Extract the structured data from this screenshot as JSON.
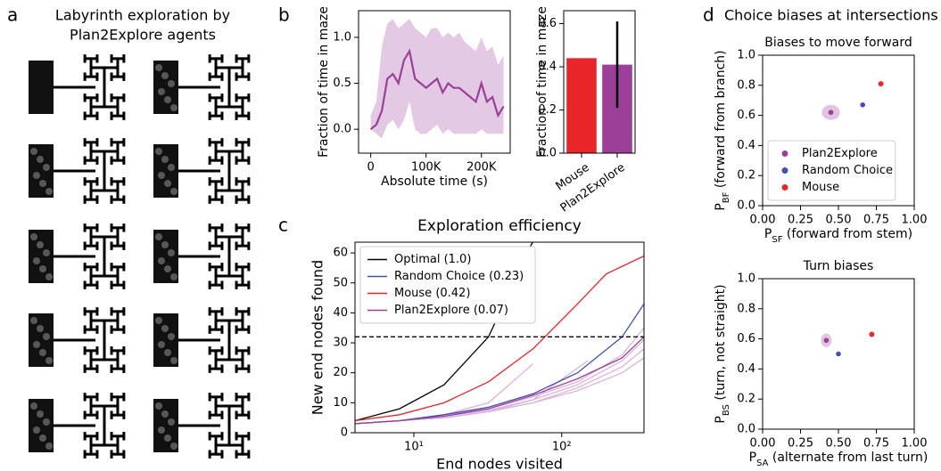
{
  "figure": {
    "labels": [
      "a",
      "b",
      "c",
      "d"
    ],
    "a_title": [
      "Labyrinth exploration by",
      "Plan2Explore agents"
    ],
    "d_title": "Choice biases at intersections"
  },
  "chart_data": [
    {
      "type": "line",
      "xlabel": "Absolute time (s)",
      "ylabel": "Fraction of time in maze",
      "x": [
        0,
        10000,
        20000,
        30000,
        40000,
        50000,
        60000,
        70000,
        80000,
        90000,
        100000,
        110000,
        120000,
        130000,
        140000,
        150000,
        160000,
        170000,
        180000,
        190000,
        200000,
        210000,
        220000,
        230000,
        240000
      ],
      "series": [
        {
          "color": "#9b3f98",
          "values": [
            0.0,
            0.05,
            0.2,
            0.55,
            0.6,
            0.5,
            0.75,
            0.85,
            0.55,
            0.5,
            0.45,
            0.5,
            0.55,
            0.4,
            0.5,
            0.45,
            0.45,
            0.4,
            0.35,
            0.3,
            0.5,
            0.3,
            0.35,
            0.15,
            0.25
          ],
          "lower": [
            0.0,
            -0.05,
            -0.1,
            0.05,
            0.1,
            0.0,
            0.1,
            0.3,
            0.0,
            -0.05,
            -0.05,
            0.0,
            0.05,
            -0.05,
            0.0,
            -0.05,
            -0.05,
            -0.05,
            -0.05,
            -0.05,
            0.0,
            -0.05,
            -0.05,
            -0.05,
            -0.05
          ],
          "upper": [
            0.15,
            0.3,
            0.9,
            1.15,
            1.2,
            1.1,
            1.15,
            1.2,
            1.1,
            1.05,
            1.0,
            1.1,
            1.1,
            1.0,
            1.05,
            1.0,
            1.05,
            0.95,
            0.9,
            0.85,
            1.0,
            0.85,
            0.9,
            0.7,
            0.8
          ]
        }
      ],
      "band_color": "#e3c9e4",
      "xlim": [
        -22000,
        252000
      ],
      "ylim": [
        -0.26,
        1.29
      ],
      "xticks": [
        0,
        {
          "value": 100000,
          "label": "100K"
        },
        {
          "value": 200000,
          "label": "200K"
        }
      ],
      "yticks": [
        {
          "value": 0,
          "label": "0.0"
        },
        {
          "value": 0.5,
          "label": "0.5"
        },
        {
          "value": 1,
          "label": "1.0"
        }
      ]
    },
    {
      "type": "bar",
      "ylabel": "Fraction of time in maze",
      "categories": [
        "Mouse",
        "Plan2Explore"
      ],
      "values": [
        0.44,
        0.41
      ],
      "errors": [
        null,
        0.2
      ],
      "colors": [
        "#e8262a",
        "#9b3f98"
      ],
      "ylim": [
        0,
        0.66
      ],
      "yticks": [
        {
          "value": 0,
          "label": "0.0"
        },
        {
          "value": 0.2,
          "label": "0.2"
        },
        {
          "value": 0.4,
          "label": "0.4"
        },
        {
          "value": 0.6,
          "label": "0.6"
        }
      ]
    },
    {
      "type": "line",
      "title": "Exploration efficiency",
      "xlabel": "End nodes visited",
      "ylabel": "New end nodes found",
      "log_x": true,
      "series": [
        {
          "name": "Optimal (1.0)",
          "color": "#000000",
          "x": [
            4,
            8,
            16,
            32,
            64
          ],
          "values": [
            4,
            8,
            16,
            32,
            64
          ]
        },
        {
          "name": "Random Choice (0.23)",
          "color": "#3f51b5",
          "x": [
            4,
            8,
            16,
            32,
            64,
            128,
            256,
            360
          ],
          "values": [
            3,
            4,
            6,
            8.5,
            13,
            20,
            32,
            43
          ]
        },
        {
          "name": "Mouse (0.42)",
          "color": "#e8262a",
          "x": [
            4,
            8,
            16,
            32,
            64,
            128,
            200,
            360
          ],
          "values": [
            4,
            6,
            10,
            17,
            28,
            43,
            53,
            59
          ]
        },
        {
          "name": "Plan2Explore (0.07)",
          "color": "#9b3f98",
          "x": [
            4,
            8,
            16,
            32,
            64,
            128,
            256,
            360
          ],
          "values": [
            3,
            4,
            5.5,
            8,
            12.5,
            18,
            25,
            32
          ]
        }
      ],
      "runs": [
        {
          "x": [
            4,
            8,
            16,
            32,
            64,
            128,
            256,
            360
          ],
          "values": [
            3,
            4,
            5,
            7,
            10,
            15,
            22,
            28
          ]
        },
        {
          "x": [
            4,
            8,
            16,
            32,
            64,
            128,
            256,
            360
          ],
          "values": [
            3,
            4,
            5.5,
            7.5,
            11,
            16,
            24,
            31
          ]
        },
        {
          "x": [
            4,
            8,
            16,
            32,
            64,
            128,
            256,
            360
          ],
          "values": [
            3,
            4,
            5,
            7,
            10,
            14,
            20,
            25
          ]
        },
        {
          "x": [
            4,
            8,
            16,
            32,
            64,
            128,
            256,
            360
          ],
          "values": [
            3,
            4,
            6,
            8,
            12,
            17,
            26,
            35
          ]
        },
        {
          "x": [
            4,
            8,
            16,
            32,
            64
          ],
          "values": [
            3,
            4,
            6,
            10,
            23
          ]
        },
        {
          "x": [
            4,
            8,
            16,
            32,
            64,
            150
          ],
          "values": [
            3,
            4,
            5,
            7,
            11,
            24
          ]
        }
      ],
      "run_color": "#dcb3db",
      "hline": 32,
      "legend": "upper left",
      "xlim": [
        4,
        360
      ],
      "ylim": [
        0,
        63.6
      ],
      "xticks": [
        {
          "value": 10,
          "label": "10¹"
        },
        {
          "value": 100,
          "label": "10²"
        }
      ],
      "yticks": [
        0,
        10,
        20,
        30,
        40,
        50,
        60
      ]
    },
    {
      "type": "scatter",
      "title": "Biases to move forward",
      "xlabel": [
        "P",
        "SF",
        " (forward from stem)"
      ],
      "ylabel": [
        "P",
        "BF",
        " (forward from branch)"
      ],
      "series": [
        {
          "name": "Plan2Explore",
          "color": "#9b3f98",
          "x": [
            0.45
          ],
          "values": [
            0.62
          ],
          "x_err": [
            0.06
          ],
          "y_err": [
            0.05
          ]
        },
        {
          "name": "Random Choice",
          "color": "#3f51b5",
          "x": [
            0.66
          ],
          "values": [
            0.67
          ]
        },
        {
          "name": "Mouse",
          "color": "#e8262a",
          "x": [
            0.78
          ],
          "values": [
            0.81
          ],
          "x_err": [
            0.02
          ],
          "y_err": [
            0.02
          ]
        }
      ],
      "legend": "lower left",
      "xlim": [
        0,
        1
      ],
      "ylim": [
        0,
        1
      ],
      "xticks": [
        {
          "value": 0,
          "label": "0.00"
        },
        {
          "value": 0.25,
          "label": "0.25"
        },
        {
          "value": 0.5,
          "label": "0.50"
        },
        {
          "value": 0.75,
          "label": "0.75"
        },
        {
          "value": 1,
          "label": "1.00"
        }
      ],
      "yticks": [
        {
          "value": 0,
          "label": "0.0"
        },
        {
          "value": 0.2,
          "label": "0.2"
        },
        {
          "value": 0.4,
          "label": "0.4"
        },
        {
          "value": 0.6,
          "label": "0.6"
        },
        {
          "value": 0.8,
          "label": "0.8"
        },
        {
          "value": 1,
          "label": "1.0"
        }
      ]
    },
    {
      "type": "scatter",
      "title": "Turn biases",
      "xlabel": [
        "P",
        "SA",
        " (alternate from last turn)"
      ],
      "ylabel": [
        "P",
        "BS",
        " (turn, not straight)"
      ],
      "series": [
        {
          "color": "#9b3f98",
          "x": [
            0.42
          ],
          "values": [
            0.59
          ],
          "x_err": [
            0.035
          ],
          "y_err": [
            0.045
          ]
        },
        {
          "color": "#3f51b5",
          "x": [
            0.5
          ],
          "values": [
            0.5
          ]
        },
        {
          "color": "#e8262a",
          "x": [
            0.72
          ],
          "values": [
            0.63
          ],
          "x_err": [
            0.02
          ],
          "y_err": [
            0.02
          ]
        }
      ],
      "xlim": [
        0,
        1
      ],
      "ylim": [
        0,
        1
      ],
      "xticks": [
        {
          "value": 0,
          "label": "0.00"
        },
        {
          "value": 0.25,
          "label": "0.25"
        },
        {
          "value": 0.5,
          "label": "0.50"
        },
        {
          "value": 0.75,
          "label": "0.75"
        },
        {
          "value": 1,
          "label": "1.00"
        }
      ],
      "yticks": [
        {
          "value": 0,
          "label": "0.0"
        },
        {
          "value": 0.2,
          "label": "0.2"
        },
        {
          "value": 0.4,
          "label": "0.4"
        },
        {
          "value": 0.6,
          "label": "0.6"
        },
        {
          "value": 0.8,
          "label": "0.8"
        },
        {
          "value": 1,
          "label": "1.0"
        }
      ]
    }
  ]
}
